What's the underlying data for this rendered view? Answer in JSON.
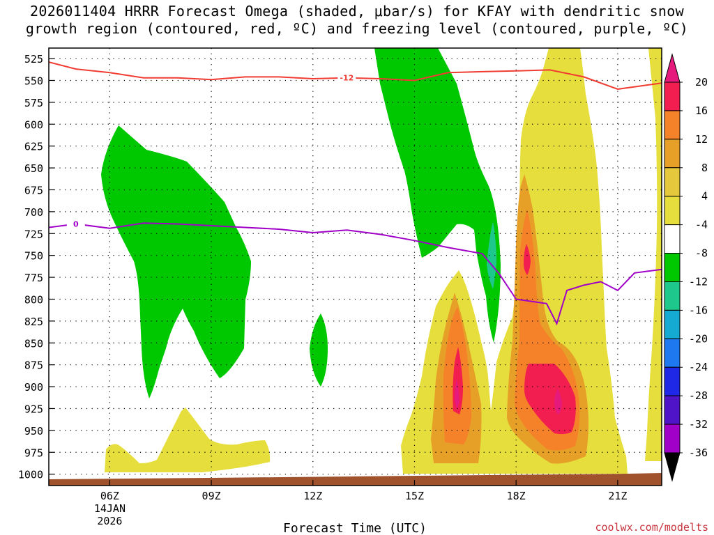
{
  "chart_data": {
    "type": "time-height cross section",
    "title_line1": "2026011404 HRRR Forecast Omega (shaded, μbar/s) for KFAY with dendritic snow",
    "title_line2": "growth region (contoured, red, ºC) and freezing level (contoured, purple, ºC)",
    "xlabel": "Forecast Time (UTC)",
    "credit": "coolwx.com/modelts",
    "x_range_hours": [
      4.2,
      22.3
    ],
    "y_range_hpa": [
      513,
      1013
    ],
    "y_ticks": [
      525,
      550,
      575,
      600,
      625,
      650,
      675,
      700,
      725,
      750,
      775,
      800,
      825,
      850,
      875,
      900,
      925,
      950,
      975,
      1000
    ],
    "x_ticks": [
      {
        "hour": 6,
        "label": "06Z",
        "date_line1": "14JAN",
        "date_line2": "2026"
      },
      {
        "hour": 9,
        "label": "09Z"
      },
      {
        "hour": 12,
        "label": "12Z"
      },
      {
        "hour": 15,
        "label": "15Z"
      },
      {
        "hour": 18,
        "label": "18Z"
      },
      {
        "hour": 21,
        "label": "21Z"
      }
    ],
    "colorbar": {
      "levels": [
        20,
        16,
        12,
        8,
        4,
        -4,
        -8,
        -12,
        -16,
        -20,
        -24,
        -28,
        -32,
        -36
      ],
      "colors": [
        "#f21e50",
        "#f58228",
        "#e6a028",
        "#e6c83c",
        "#e6de3c",
        "#ffffff",
        "#00c800",
        "#1ec88c",
        "#14aad2",
        "#1e78f0",
        "#1e28e6",
        "#5014c8",
        "#a000c8",
        "#a8a8a8"
      ],
      "top_color": "#e6197d",
      "bottom_color": "#000000"
    },
    "contours": [
      {
        "name": "dendritic growth -12C",
        "color": "#f03c32",
        "label": "-12",
        "points": [
          [
            4.2,
            529
          ],
          [
            5.0,
            537
          ],
          [
            6.0,
            541
          ],
          [
            7.0,
            547
          ],
          [
            8.0,
            547
          ],
          [
            9.0,
            549
          ],
          [
            10.0,
            546
          ],
          [
            11.0,
            546
          ],
          [
            12.0,
            548
          ],
          [
            13.0,
            547
          ],
          [
            14.0,
            548
          ],
          [
            15.0,
            550
          ],
          [
            16.0,
            541
          ],
          [
            17.0,
            540
          ],
          [
            18.0,
            539
          ],
          [
            19.0,
            538
          ],
          [
            20.0,
            546
          ],
          [
            21.0,
            560
          ],
          [
            22.3,
            553
          ]
        ]
      },
      {
        "name": "freezing level 0C",
        "color": "#a000c8",
        "label": "0",
        "points": [
          [
            4.2,
            718
          ],
          [
            5.0,
            714
          ],
          [
            6.0,
            719
          ],
          [
            7.0,
            713
          ],
          [
            8.0,
            714
          ],
          [
            9.0,
            716
          ],
          [
            10.0,
            718
          ],
          [
            11.0,
            720
          ],
          [
            12.0,
            724
          ],
          [
            13.0,
            721
          ],
          [
            14.0,
            726
          ],
          [
            15.0,
            733
          ],
          [
            16.0,
            741
          ],
          [
            17.0,
            748
          ],
          [
            17.5,
            771
          ],
          [
            18.0,
            800
          ],
          [
            18.9,
            805
          ],
          [
            19.2,
            828
          ],
          [
            19.5,
            790
          ],
          [
            20.0,
            784
          ],
          [
            20.5,
            780
          ],
          [
            21.0,
            790
          ],
          [
            21.5,
            770
          ],
          [
            22.3,
            766
          ]
        ]
      }
    ]
  }
}
